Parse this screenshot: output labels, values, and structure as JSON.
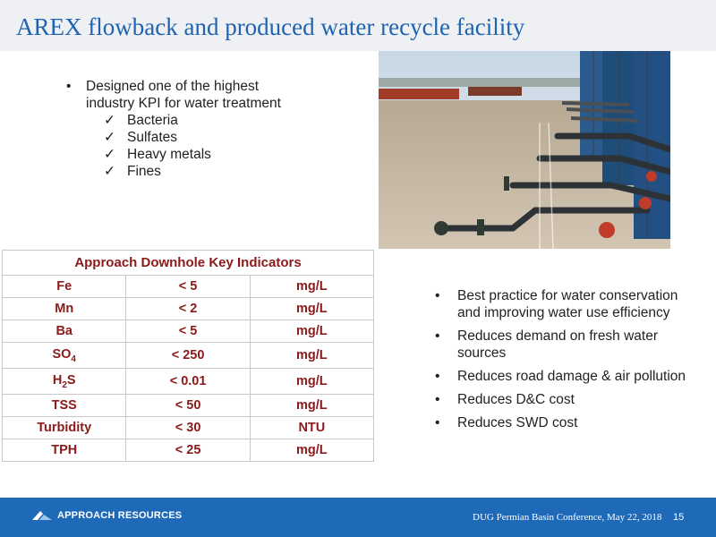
{
  "slide": {
    "title": "AREX flowback and produced water recycle facility"
  },
  "top_bullets": {
    "main": "Designed one of the highest industry KPI for water treatment",
    "checks": [
      "Bacteria",
      "Sulfates",
      "Heavy metals",
      "Fines"
    ]
  },
  "table": {
    "header": "Approach Downhole Key Indicators",
    "rows": [
      {
        "param": "Fe",
        "value": "< 5",
        "unit": "mg/L"
      },
      {
        "param": "Mn",
        "value": "< 2",
        "unit": "mg/L"
      },
      {
        "param": "Ba",
        "value": "< 5",
        "unit": "mg/L"
      },
      {
        "param_main": "SO",
        "param_sub": "4",
        "value": "< 250",
        "unit": "mg/L"
      },
      {
        "param_main": "H",
        "param_sub": "2",
        "param_tail": "S",
        "value": "< 0.01",
        "unit": "mg/L"
      },
      {
        "param": "TSS",
        "value": "< 50",
        "unit": "mg/L"
      },
      {
        "param": "Turbidity",
        "value": "< 30",
        "unit": "NTU"
      },
      {
        "param": "TPH",
        "value": "< 25",
        "unit": "mg/L"
      }
    ]
  },
  "right_bullets": [
    "Best practice for water conservation and improving water use efficiency",
    "Reduces demand on fresh water sources",
    "Reduces road damage & air pollution",
    "Reduces D&C cost",
    "Reduces SWD cost"
  ],
  "footer": {
    "logo_text": "APPROACH RESOURCES",
    "conference": "DUG Permian Basin Conference, May 22, 2018",
    "page": "15"
  },
  "colors": {
    "title": "#1f63b0",
    "table_text": "#8b1a1a",
    "footer_bg": "#1f6ab8"
  }
}
